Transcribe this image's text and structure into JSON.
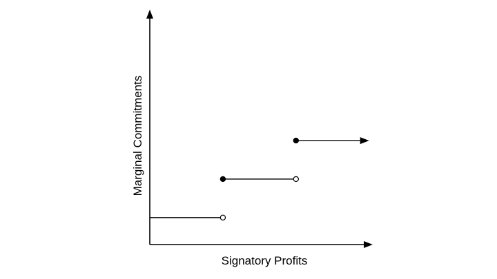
{
  "chart_data": {
    "type": "line",
    "title": "",
    "xlabel": "Signatory Profits",
    "ylabel": "Marginal Commitments",
    "xlim": [
      0,
      3.05
    ],
    "ylim": [
      0,
      3.05
    ],
    "grid": false,
    "show_ticks": false,
    "segments": [
      {
        "x0": 0,
        "x1": 1,
        "y": 0.35,
        "start": "none",
        "end": "open"
      },
      {
        "x0": 1,
        "x1": 2,
        "y": 0.85,
        "start": "closed",
        "end": "open"
      },
      {
        "x0": 2,
        "x1": 3,
        "y": 1.35,
        "start": "closed",
        "end": "arrow"
      }
    ]
  }
}
